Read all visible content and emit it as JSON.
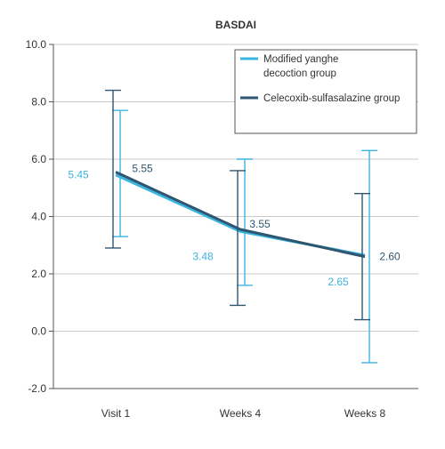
{
  "chart_data": {
    "type": "line",
    "title": "BASDAI",
    "xlabel": "",
    "ylabel": "",
    "categories": [
      "Visit 1",
      "Weeks 4",
      "Weeks 8"
    ],
    "ylim": [
      -2.0,
      10.0
    ],
    "yticks": [
      -2.0,
      0.0,
      2.0,
      4.0,
      6.0,
      8.0,
      10.0
    ],
    "ytick_labels": [
      "-2.0",
      "0.0",
      "2.0",
      "4.0",
      "6.0",
      "8.0",
      "10.0"
    ],
    "grid": true,
    "legend_position": "top-right",
    "series": [
      {
        "name": "Modified yanghe decoction group",
        "color": "#3cb4e0",
        "values": [
          5.45,
          3.48,
          2.65
        ],
        "value_labels": [
          "5.45",
          "3.48",
          "2.65"
        ],
        "error_low": [
          3.3,
          1.6,
          -1.1
        ],
        "error_high": [
          7.7,
          6.0,
          6.3
        ]
      },
      {
        "name": "Celecoxib-sulfasalazine group",
        "color": "#2f5670",
        "values": [
          5.55,
          3.55,
          2.6
        ],
        "value_labels": [
          "5.55",
          "3.55",
          "2.60"
        ],
        "error_low": [
          2.9,
          0.9,
          0.4
        ],
        "error_high": [
          8.4,
          5.6,
          4.8
        ]
      }
    ]
  }
}
